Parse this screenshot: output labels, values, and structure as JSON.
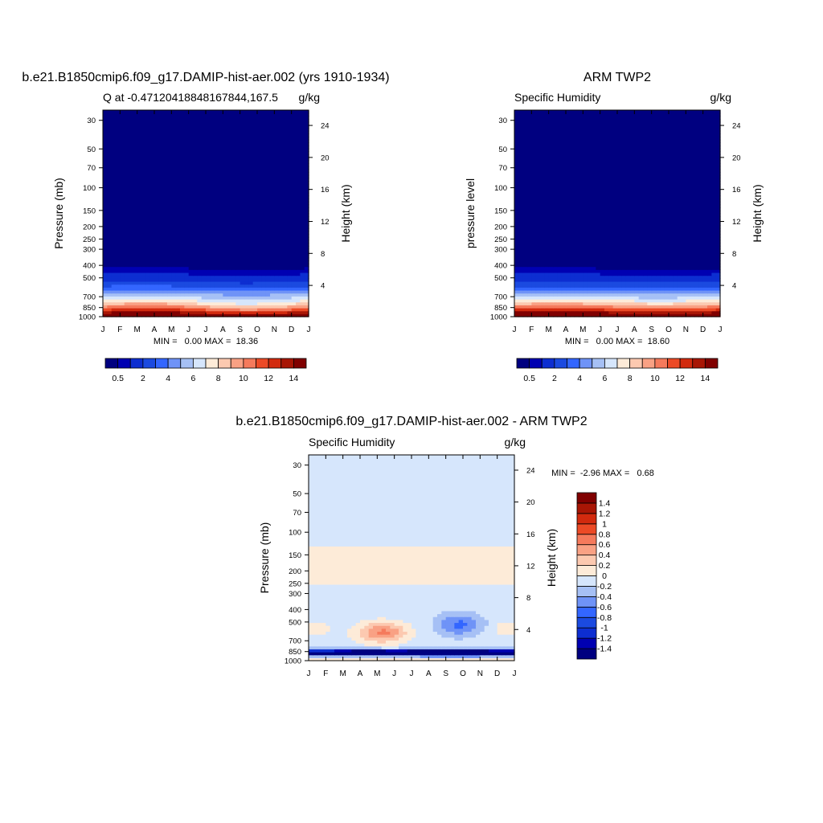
{
  "chart_data": [
    {
      "type": "heatmap",
      "id": "model",
      "title": "b.e21.B1850cmip6.f09_g17.DAMIP-hist-aer.002 (yrs 1910-1934)",
      "left_string": "Q at -0.47120418848167844,167.5",
      "right_string": "g/kg",
      "ylabel": "Pressure (mb)",
      "ylabel_right": "Height (km)",
      "x_ticks": [
        "J",
        "F",
        "M",
        "A",
        "M",
        "J",
        "J",
        "A",
        "S",
        "O",
        "N",
        "D",
        "J"
      ],
      "pressure_ticks": [
        30,
        50,
        70,
        100,
        150,
        200,
        250,
        300,
        400,
        500,
        700,
        850,
        1000
      ],
      "pressure_labels": [
        "30",
        "50",
        "70",
        "100",
        "150",
        "200",
        "250",
        "300",
        "400",
        "500",
        "700",
        "850",
        "1000"
      ],
      "height_ticks": [
        4,
        8,
        12,
        16,
        20,
        24
      ],
      "height_labels": [
        "4",
        "8",
        "12",
        "16",
        "20",
        "24"
      ],
      "ylim_pressure": [
        1000,
        25
      ],
      "min_max_text": "MIN =   0.00 MAX =  18.36",
      "min": 0.0,
      "max": 18.36,
      "colorbar": {
        "levels": [
          0.5,
          1,
          2,
          3,
          4,
          5,
          6,
          7,
          8,
          9,
          10,
          11,
          12,
          13,
          14
        ],
        "labels": [
          "0.5",
          "2",
          "4",
          "6",
          "8",
          "10",
          "12",
          "14"
        ],
        "colors": [
          "#000080",
          "#0000b2",
          "#0d2ed1",
          "#1b4ae0",
          "#3366ff",
          "#6f93f7",
          "#a6c0f5",
          "#d6e6fc",
          "#fdebd8",
          "#fcc9b0",
          "#f9a184",
          "#f57a5c",
          "#ec4a26",
          "#d22a0e",
          "#a81605",
          "#800000"
        ]
      }
    },
    {
      "type": "heatmap",
      "id": "obs",
      "title": "ARM TWP2",
      "left_string": "Specific Humidity",
      "right_string": "g/kg",
      "ylabel": "pressure level",
      "ylabel_right": "Height (km)",
      "x_ticks": [
        "J",
        "F",
        "M",
        "A",
        "M",
        "J",
        "J",
        "A",
        "S",
        "O",
        "N",
        "D",
        "J"
      ],
      "pressure_ticks": [
        30,
        50,
        70,
        100,
        150,
        200,
        250,
        300,
        400,
        500,
        700,
        850,
        1000
      ],
      "pressure_labels": [
        "30",
        "50",
        "70",
        "100",
        "150",
        "200",
        "250",
        "300",
        "400",
        "500",
        "700",
        "850",
        "1000"
      ],
      "height_ticks": [
        4,
        8,
        12,
        16,
        20,
        24
      ],
      "height_labels": [
        "4",
        "8",
        "12",
        "16",
        "20",
        "24"
      ],
      "ylim_pressure": [
        1000,
        25
      ],
      "min_max_text": "MIN =   0.00 MAX =  18.60",
      "min": 0.0,
      "max": 18.6,
      "colorbar": {
        "levels": [
          0.5,
          1,
          2,
          3,
          4,
          5,
          6,
          7,
          8,
          9,
          10,
          11,
          12,
          13,
          14
        ],
        "labels": [
          "0.5",
          "2",
          "4",
          "6",
          "8",
          "10",
          "12",
          "14"
        ],
        "colors": [
          "#000080",
          "#0000b2",
          "#0d2ed1",
          "#1b4ae0",
          "#3366ff",
          "#6f93f7",
          "#a6c0f5",
          "#d6e6fc",
          "#fdebd8",
          "#fcc9b0",
          "#f9a184",
          "#f57a5c",
          "#ec4a26",
          "#d22a0e",
          "#a81605",
          "#800000"
        ]
      }
    },
    {
      "type": "heatmap",
      "id": "diff",
      "title": "b.e21.B1850cmip6.f09_g17.DAMIP-hist-aer.002 - ARM TWP2",
      "left_string": "Specific Humidity",
      "right_string": "g/kg",
      "ylabel": "Pressure (mb)",
      "ylabel_right": "Height (km)",
      "x_ticks": [
        "J",
        "F",
        "M",
        "A",
        "M",
        "J",
        "J",
        "A",
        "S",
        "O",
        "N",
        "D",
        "J"
      ],
      "pressure_ticks": [
        30,
        50,
        70,
        100,
        150,
        200,
        250,
        300,
        400,
        500,
        700,
        850,
        1000
      ],
      "pressure_labels": [
        "30",
        "50",
        "70",
        "100",
        "150",
        "200",
        "250",
        "300",
        "400",
        "500",
        "700",
        "850",
        "1000"
      ],
      "height_ticks": [
        4,
        8,
        12,
        16,
        20,
        24
      ],
      "height_labels": [
        "4",
        "8",
        "12",
        "16",
        "20",
        "24"
      ],
      "ylim_pressure": [
        1000,
        25
      ],
      "min_max_text": "MIN =  -2.96 MAX =   0.68",
      "min": -2.96,
      "max": 0.68,
      "colorbar": {
        "levels": [
          -1.4,
          -1.2,
          -1,
          -0.8,
          -0.6,
          -0.4,
          -0.2,
          0,
          0.2,
          0.4,
          0.6,
          0.8,
          1,
          1.2,
          1.4
        ],
        "labels": [
          "-1.4",
          "-1.2",
          "-1",
          "-0.8",
          "-0.6",
          "-0.4",
          "-0.2",
          "0",
          "0.2",
          "0.4",
          "0.6",
          "0.8",
          "1",
          "1.2",
          "1.4"
        ],
        "colors": [
          "#000080",
          "#0000b2",
          "#0d2ed1",
          "#1b4ae0",
          "#3366ff",
          "#6f93f7",
          "#a6c0f5",
          "#d6e6fc",
          "#fdebd8",
          "#fcc9b0",
          "#f9a184",
          "#f57a5c",
          "#ec4a26",
          "#d22a0e",
          "#a81605",
          "#800000"
        ]
      }
    }
  ]
}
